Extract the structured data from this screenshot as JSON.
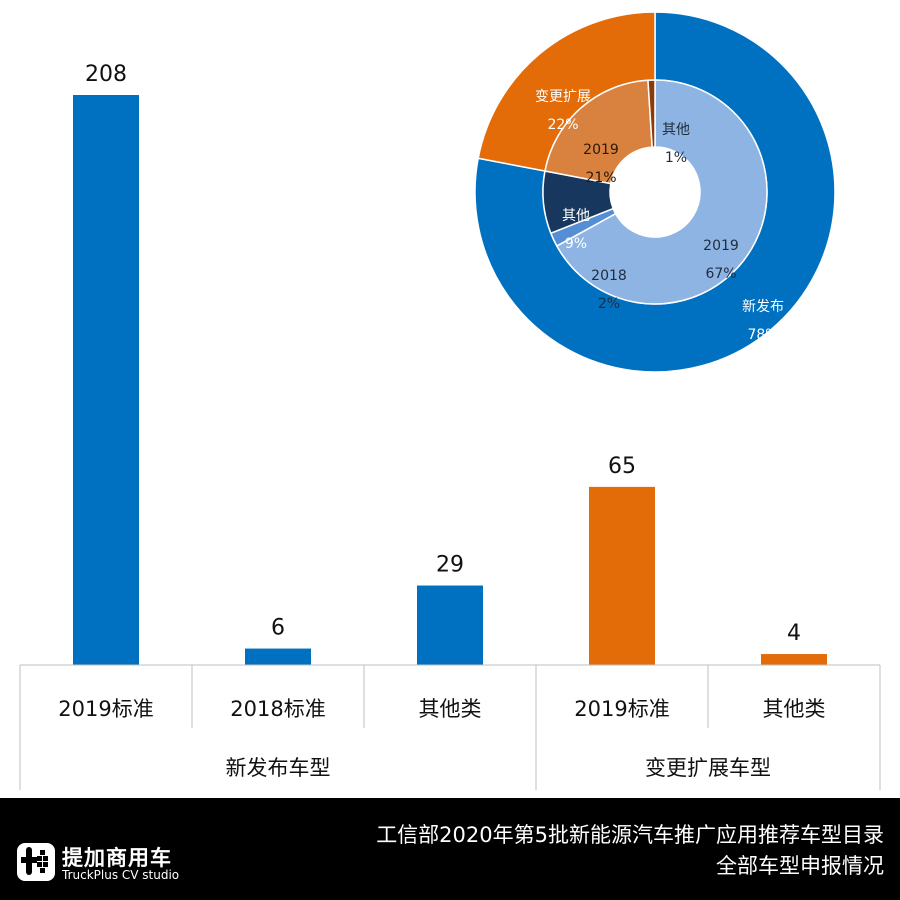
{
  "chart_data": [
    {
      "type": "bar",
      "groups": [
        {
          "name": "新发布车型",
          "categories": [
            "2019标准",
            "2018标准",
            "其他类"
          ],
          "values": [
            208,
            6,
            29
          ],
          "color": "#0070C0"
        },
        {
          "name": "变更扩展车型",
          "categories": [
            "2019标准",
            "其他类"
          ],
          "values": [
            65,
            4
          ],
          "color": "#E36C09"
        }
      ],
      "ylim": [
        0,
        208
      ],
      "grid": false,
      "legend": "none"
    },
    {
      "type": "pie",
      "subtype": "double-donut",
      "outer": [
        {
          "label": "新发布",
          "pct": "78%",
          "value": 78,
          "color": "#0070C0",
          "text_color": "#ffffff"
        },
        {
          "label": "变更扩展",
          "pct": "22%",
          "value": 22,
          "color": "#E36C09",
          "text_color": "#ffffff"
        }
      ],
      "inner": [
        {
          "label": "2019",
          "pct": "67%",
          "value": 67,
          "color": "#8EB4E3",
          "text_color": "#1F2D3D"
        },
        {
          "label": "2018",
          "pct": "2%",
          "value": 2,
          "color": "#558ED5",
          "text_color": "#1F2D3D"
        },
        {
          "label": "其他",
          "pct": "9%",
          "value": 9,
          "color": "#17375E",
          "text_color": "#ffffff"
        },
        {
          "label": "2019",
          "pct": "21%",
          "value": 21,
          "color": "#D9823F",
          "text_color": "#2a1a0a"
        },
        {
          "label": "其他",
          "pct": "1%",
          "value": 1,
          "color": "#8B3A0A",
          "text_color": "#1F2D3D"
        }
      ]
    }
  ],
  "footer": {
    "brand_cn": "提加商用车",
    "brand_en": "TruckPlus CV studio",
    "title_line1": "工信部2020年第5批新能源汽车推广应用推荐车型目录",
    "title_line2": "全部车型申报情况"
  }
}
